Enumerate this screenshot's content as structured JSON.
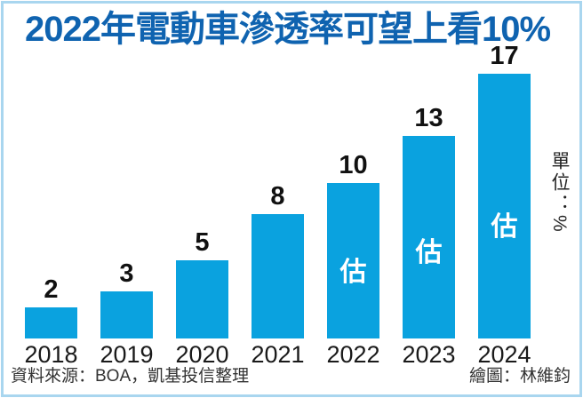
{
  "title": "2022年電動車滲透率可望上看10%",
  "unit_label": "單位：%",
  "footer": {
    "source": "資料來源：BOA，凱基投信整理",
    "credit": "繪圖：林維鈞"
  },
  "colors": {
    "bar": "#0aa2df",
    "title": "#0f63b0",
    "frame": "#a9d6ef",
    "estimate_text": "#ffffff",
    "label_text": "#111111"
  },
  "chart_data": {
    "type": "bar",
    "categories": [
      "2018",
      "2019",
      "2020",
      "2021",
      "2022",
      "2023",
      "2024"
    ],
    "values": [
      2,
      3,
      5,
      8,
      10,
      13,
      17
    ],
    "estimated": [
      false,
      false,
      false,
      false,
      true,
      true,
      true
    ],
    "estimate_mark": "估",
    "title": "2022年電動車滲透率可望上看10%",
    "xlabel": "",
    "ylabel": "單位：%",
    "ylim": [
      0,
      18
    ],
    "grid": false,
    "legend": "none",
    "value_labels": "above-bars"
  }
}
